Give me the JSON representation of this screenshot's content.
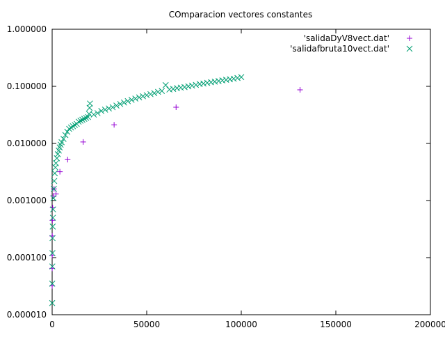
{
  "chart_data": {
    "type": "scatter",
    "title": "COmparacion vectores constantes",
    "xlabel": "",
    "ylabel": "",
    "xlim": [
      0,
      200000
    ],
    "ylim": [
      1e-05,
      1
    ],
    "yscale": "log",
    "x_ticks": [
      0,
      50000,
      100000,
      150000,
      200000
    ],
    "x_tick_labels": [
      "0",
      "50000",
      "100000",
      "150000",
      "200000"
    ],
    "y_ticks": [
      1e-05,
      0.0001,
      0.001,
      0.01,
      0.1,
      1
    ],
    "y_tick_labels": [
      "0.000010",
      "0.000100",
      "0.001000",
      "0.010000",
      "0.100000",
      "1.000000"
    ],
    "grid": false,
    "legend_position": "top-right",
    "series": [
      {
        "name": "'salidaDyV8vect.dat'",
        "marker": "plus",
        "color": "#9400d3",
        "points": [
          [
            8,
            3.2e-05
          ],
          [
            16,
            6.5e-05
          ],
          [
            32,
            0.00011
          ],
          [
            64,
            0.00024
          ],
          [
            128,
            0.00045
          ],
          [
            256,
            0.00075
          ],
          [
            512,
            0.0012
          ],
          [
            1024,
            0.0016
          ],
          [
            2048,
            0.0013
          ],
          [
            4096,
            0.0032
          ],
          [
            8192,
            0.0052
          ],
          [
            16384,
            0.0106
          ],
          [
            32768,
            0.0212
          ],
          [
            65536,
            0.043
          ],
          [
            131072,
            0.087
          ]
        ]
      },
      {
        "name": "'salidafbruta10vect.dat'",
        "marker": "cross",
        "color": "#009e73",
        "points": [
          [
            20,
            1.6e-05
          ],
          [
            50,
            3.5e-05
          ],
          [
            100,
            7e-05
          ],
          [
            150,
            0.00012
          ],
          [
            200,
            0.00022
          ],
          [
            300,
            0.00035
          ],
          [
            400,
            0.0005
          ],
          [
            500,
            0.0007
          ],
          [
            700,
            0.0011
          ],
          [
            900,
            0.0016
          ],
          [
            1100,
            0.0022
          ],
          [
            1400,
            0.003
          ],
          [
            1700,
            0.0038
          ],
          [
            2000,
            0.0045
          ],
          [
            2500,
            0.0055
          ],
          [
            3000,
            0.0065
          ],
          [
            3500,
            0.0075
          ],
          [
            4000,
            0.0085
          ],
          [
            4500,
            0.0095
          ],
          [
            5000,
            0.0105
          ],
          [
            6000,
            0.012
          ],
          [
            7000,
            0.014
          ],
          [
            8000,
            0.016
          ],
          [
            9000,
            0.018
          ],
          [
            10000,
            0.019
          ],
          [
            11000,
            0.02
          ],
          [
            12000,
            0.021
          ],
          [
            13000,
            0.022
          ],
          [
            14000,
            0.024
          ],
          [
            15000,
            0.025
          ],
          [
            16000,
            0.026
          ],
          [
            17000,
            0.027
          ],
          [
            18000,
            0.028
          ],
          [
            19000,
            0.029
          ],
          [
            19500,
            0.033
          ],
          [
            19800,
            0.042
          ],
          [
            20000,
            0.05
          ],
          [
            22000,
            0.032
          ],
          [
            24000,
            0.034
          ],
          [
            26000,
            0.037
          ],
          [
            28000,
            0.039
          ],
          [
            30000,
            0.041
          ],
          [
            32000,
            0.043
          ],
          [
            34000,
            0.046
          ],
          [
            36000,
            0.049
          ],
          [
            38000,
            0.052
          ],
          [
            40000,
            0.055
          ],
          [
            42000,
            0.058
          ],
          [
            44000,
            0.061
          ],
          [
            46000,
            0.064
          ],
          [
            48000,
            0.067
          ],
          [
            50000,
            0.07
          ],
          [
            52000,
            0.073
          ],
          [
            54000,
            0.076
          ],
          [
            56000,
            0.08
          ],
          [
            58000,
            0.083
          ],
          [
            60000,
            0.105
          ],
          [
            62000,
            0.088
          ],
          [
            64000,
            0.09
          ],
          [
            66000,
            0.093
          ],
          [
            68000,
            0.095
          ],
          [
            70000,
            0.097
          ],
          [
            72000,
            0.1
          ],
          [
            74000,
            0.103
          ],
          [
            76000,
            0.106
          ],
          [
            78000,
            0.11
          ],
          [
            80000,
            0.112
          ],
          [
            82000,
            0.115
          ],
          [
            84000,
            0.118
          ],
          [
            86000,
            0.121
          ],
          [
            88000,
            0.124
          ],
          [
            90000,
            0.127
          ],
          [
            92000,
            0.13
          ],
          [
            94000,
            0.133
          ],
          [
            96000,
            0.136
          ],
          [
            98000,
            0.14
          ],
          [
            100000,
            0.145
          ]
        ]
      }
    ]
  }
}
